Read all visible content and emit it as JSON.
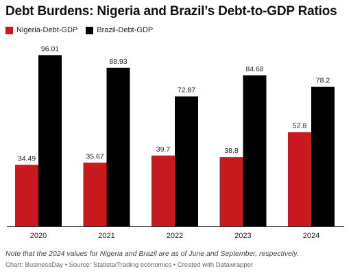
{
  "chart_data": {
    "type": "bar",
    "title": "Debt Burdens: Nigeria and Brazil’s Debt-to-GDP Ratios",
    "categories": [
      "2020",
      "2021",
      "2022",
      "2023",
      "2024"
    ],
    "series": [
      {
        "name": "Nigeria-Debt-GDP",
        "values": [
          34.49,
          35.67,
          39.7,
          38.8,
          52.8
        ],
        "labels": [
          "34.49",
          "35.67",
          "39.7",
          "38.8",
          "52.8"
        ],
        "color": "#c8191f"
      },
      {
        "name": "Brazil-Debt-GDP",
        "values": [
          96.01,
          88.93,
          72.87,
          84.68,
          78.2
        ],
        "labels": [
          "96.01",
          "88.93",
          "72.87",
          "84.68",
          "78.2"
        ],
        "color": "#000000"
      }
    ],
    "ylim": [
      0,
      100
    ],
    "grid": false,
    "legend": "top-left"
  },
  "footer": {
    "note": "Note that the 2024 values for Nigeria and Brazil are as of June and September, respectively.",
    "credit": "Chart: BusinessDay • Source: Statista/Trading economics • Created with Datawrapper"
  }
}
